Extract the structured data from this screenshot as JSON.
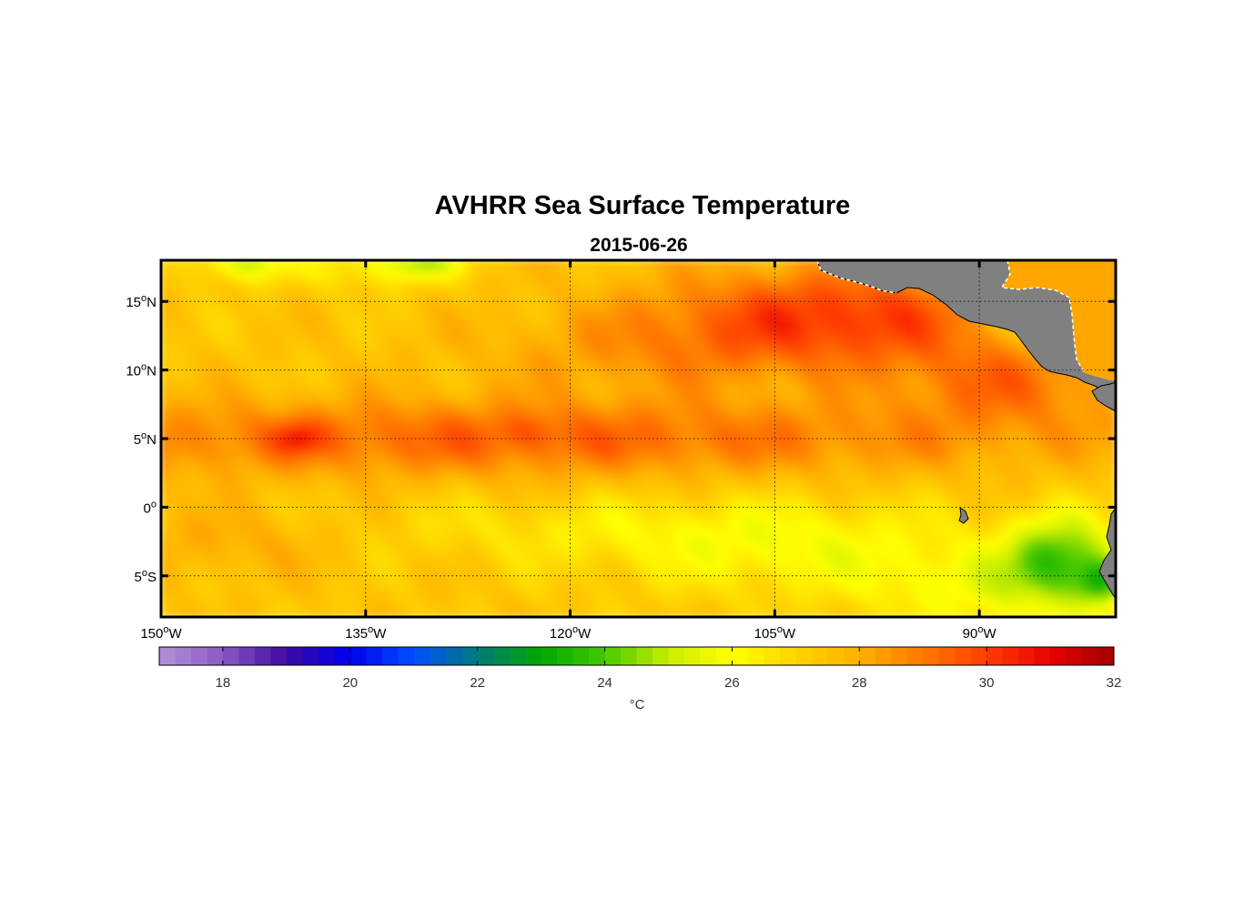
{
  "chart_data": {
    "type": "heatmap",
    "title": "AVHRR Sea Surface Temperature",
    "subtitle": "2015-06-26",
    "variable": "Sea Surface Temperature",
    "units": "°C",
    "x_axis": {
      "range_deg": [
        -150,
        -80
      ],
      "ticks": [
        {
          "value": -150,
          "deg": "150",
          "hemi": "W"
        },
        {
          "value": -135,
          "deg": "135",
          "hemi": "W"
        },
        {
          "value": -120,
          "deg": "120",
          "hemi": "W"
        },
        {
          "value": -105,
          "deg": "105",
          "hemi": "W"
        },
        {
          "value": -90,
          "deg": "90",
          "hemi": "W"
        }
      ]
    },
    "y_axis": {
      "range_deg": [
        -8,
        18
      ],
      "ticks": [
        {
          "value": 15,
          "deg": "15",
          "hemi": "N"
        },
        {
          "value": 10,
          "deg": "10",
          "hemi": "N"
        },
        {
          "value": 5,
          "deg": "5",
          "hemi": "N"
        },
        {
          "value": 0,
          "deg": "0",
          "hemi": ""
        },
        {
          "value": -5,
          "deg": "5",
          "hemi": "S"
        }
      ]
    },
    "grid": true,
    "colorbar": {
      "range": [
        17,
        32
      ],
      "ticks": [
        "18",
        "20",
        "22",
        "24",
        "26",
        "28",
        "30",
        "32"
      ],
      "label": "°C",
      "colormap": [
        {
          "v": 17,
          "color": "#b293d6"
        },
        {
          "v": 18,
          "color": "#8a59c4"
        },
        {
          "v": 19,
          "color": "#3d0aa0"
        },
        {
          "v": 20,
          "color": "#0000ee"
        },
        {
          "v": 21,
          "color": "#0050ff"
        },
        {
          "v": 22,
          "color": "#007a7a"
        },
        {
          "v": 23,
          "color": "#00a800"
        },
        {
          "v": 24,
          "color": "#48c800"
        },
        {
          "v": 25,
          "color": "#c8ee00"
        },
        {
          "v": 26,
          "color": "#ffff00"
        },
        {
          "v": 27,
          "color": "#ffd400"
        },
        {
          "v": 28,
          "color": "#ffb000"
        },
        {
          "v": 29,
          "color": "#ff7800"
        },
        {
          "v": 30,
          "color": "#ff3c00"
        },
        {
          "v": 31,
          "color": "#e80000"
        },
        {
          "v": 32,
          "color": "#a00000"
        }
      ]
    },
    "features": [
      {
        "name": "warm-pool-north",
        "lon": -102,
        "lat": 15,
        "value": 30.8
      },
      {
        "name": "warm-spot",
        "lon": -140,
        "lat": 5,
        "value": 30.3
      },
      {
        "name": "equatorial-cold-tongue",
        "lon": -85,
        "lat": -3,
        "value": 22.5
      },
      {
        "name": "coastal-upwelling-min",
        "lon": -80.5,
        "lat": -5.5,
        "value": 20.5
      },
      {
        "name": "northwest-cool-patch",
        "lon": -145,
        "lat": 17.5,
        "value": 25
      }
    ],
    "land_color": "#808080"
  }
}
